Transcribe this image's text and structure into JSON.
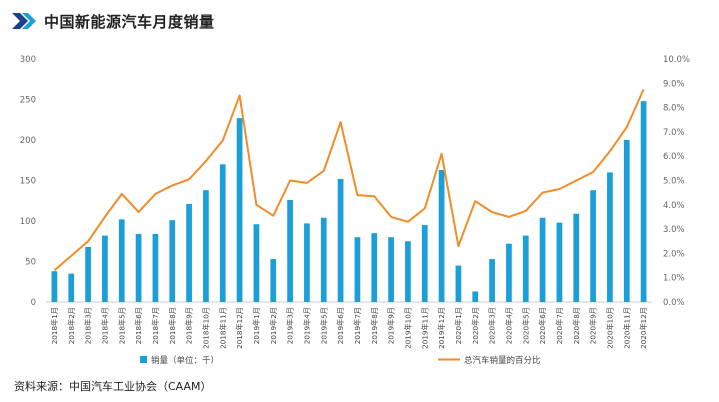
{
  "header": {
    "title": "中国新能源汽车月度销量"
  },
  "footer": {
    "source": "资料来源：中国汽车工业协会（CAAM）"
  },
  "chart_data": {
    "type": "bar+line",
    "title": "中国新能源汽车月度销量",
    "categories": [
      "2018年1月",
      "2018年2月",
      "2018年3月",
      "2018年4月",
      "2018年5月",
      "2018年6月",
      "2018年7月",
      "2018年8月",
      "2018年9月",
      "2018年10月",
      "2018年11月",
      "2018年12月",
      "2019年1月",
      "2019年2月",
      "2019年3月",
      "2019年4月",
      "2019年5月",
      "2019年6月",
      "2019年7月",
      "2019年8月",
      "2019年9月",
      "2019年10月",
      "2019年11月",
      "2019年12月",
      "2020年1月",
      "2020年2月",
      "2020年3月",
      "2020年4月",
      "2020年5月",
      "2020年6月",
      "2020年7月",
      "2020年8月",
      "2020年9月",
      "2020年10月",
      "2020年11月",
      "2020年12月"
    ],
    "series": [
      {
        "name": "销量（单位：千）",
        "type": "bar",
        "axis": "left",
        "color": "#1a9fd8",
        "values": [
          38,
          35,
          68,
          82,
          102,
          84,
          84,
          101,
          121,
          138,
          170,
          227,
          96,
          53,
          126,
          97,
          104,
          152,
          80,
          85,
          80,
          75,
          95,
          163,
          45,
          13,
          53,
          72,
          82,
          104,
          98,
          109,
          138,
          160,
          200,
          248
        ]
      },
      {
        "name": "总汽车销量的百分比",
        "type": "line",
        "axis": "right",
        "color": "#f28c28",
        "values": [
          1.3,
          1.9,
          2.5,
          3.5,
          4.45,
          3.7,
          4.45,
          4.8,
          5.05,
          5.8,
          6.65,
          8.5,
          4.0,
          3.55,
          5.0,
          4.9,
          5.4,
          7.4,
          4.4,
          4.35,
          3.5,
          3.3,
          3.85,
          6.1,
          2.3,
          4.15,
          3.7,
          3.5,
          3.75,
          4.5,
          4.65,
          5.0,
          5.35,
          6.2,
          7.2,
          8.75
        ]
      }
    ],
    "y_left": {
      "ticks": [
        "0",
        "50",
        "100",
        "150",
        "200",
        "250",
        "300"
      ],
      "ylim": [
        0,
        300
      ]
    },
    "y_right": {
      "ticks": [
        "0.0%",
        "1.0%",
        "2.0%",
        "3.0%",
        "4.0%",
        "5.0%",
        "6.0%",
        "7.0%",
        "8.0%",
        "9.0%",
        "10.0%"
      ],
      "ylim": [
        0,
        10
      ]
    },
    "grid": false,
    "legend": "bottom"
  }
}
